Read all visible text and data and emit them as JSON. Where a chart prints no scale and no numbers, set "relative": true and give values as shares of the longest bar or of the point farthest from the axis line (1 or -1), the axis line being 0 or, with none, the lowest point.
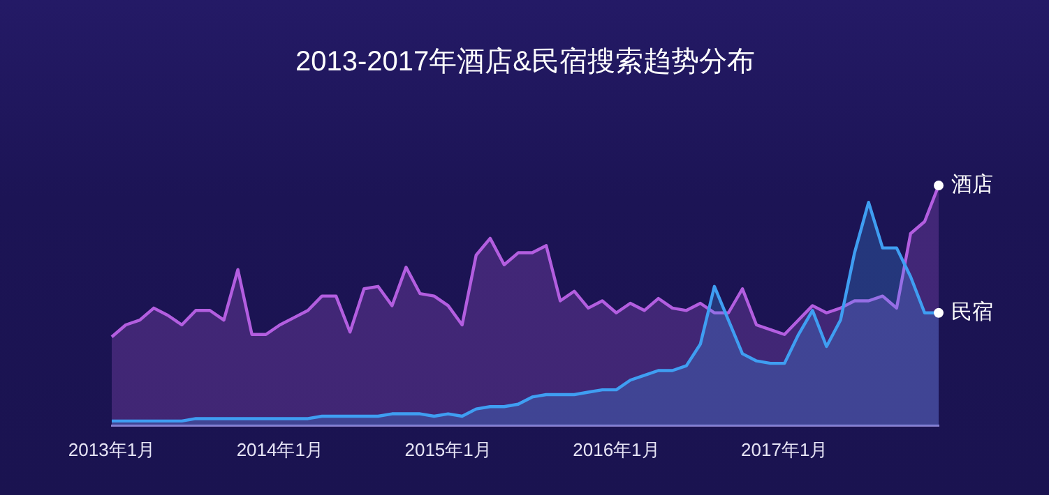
{
  "chart_data": {
    "type": "area",
    "title": "2013-2017年酒店&民宿搜索趋势分布",
    "relative": true,
    "grid": false,
    "legend": false,
    "categories": [
      "2013年1月",
      null,
      null,
      null,
      null,
      null,
      null,
      null,
      null,
      null,
      null,
      null,
      "2014年1月",
      null,
      null,
      null,
      null,
      null,
      null,
      null,
      null,
      null,
      null,
      null,
      "2015年1月",
      null,
      null,
      null,
      null,
      null,
      null,
      null,
      null,
      null,
      null,
      null,
      "2016年1月",
      null,
      null,
      null,
      null,
      null,
      null,
      null,
      null,
      null,
      null,
      null,
      "2017年1月",
      null,
      null,
      null,
      null,
      null,
      null,
      null,
      null,
      null,
      null,
      null
    ],
    "series": [
      {
        "name": "酒店",
        "color": "#b35ee0",
        "values": [
          0.37,
          0.42,
          0.44,
          0.49,
          0.46,
          0.42,
          0.48,
          0.48,
          0.44,
          0.65,
          0.38,
          0.38,
          0.42,
          0.45,
          0.48,
          0.54,
          0.54,
          0.39,
          0.57,
          0.58,
          0.5,
          0.66,
          0.55,
          0.54,
          0.5,
          0.42,
          0.71,
          0.78,
          0.67,
          0.72,
          0.72,
          0.75,
          0.52,
          0.56,
          0.49,
          0.52,
          0.47,
          0.51,
          0.48,
          0.53,
          0.49,
          0.48,
          0.51,
          0.47,
          0.47,
          0.57,
          0.42,
          0.4,
          0.38,
          0.44,
          0.5,
          0.47,
          0.49,
          0.52,
          0.52,
          0.54,
          0.49,
          0.8,
          0.85,
          1
        ]
      },
      {
        "name": "民宿",
        "color": "#3f9ef2",
        "values": [
          0.02,
          0.02,
          0.02,
          0.02,
          0.02,
          0.02,
          0.03,
          0.03,
          0.03,
          0.03,
          0.03,
          0.03,
          0.03,
          0.03,
          0.03,
          0.04,
          0.04,
          0.04,
          0.04,
          0.04,
          0.05,
          0.05,
          0.05,
          0.04,
          0.05,
          0.04,
          0.07,
          0.08,
          0.08,
          0.09,
          0.12,
          0.13,
          0.13,
          0.13,
          0.14,
          0.15,
          0.15,
          0.19,
          0.21,
          0.23,
          0.23,
          0.25,
          0.34,
          0.58,
          0.44,
          0.3,
          0.27,
          0.26,
          0.26,
          0.38,
          0.48,
          0.33,
          0.44,
          0.72,
          0.93,
          0.74,
          0.74,
          0.62,
          0.47,
          0.47
        ]
      }
    ]
  }
}
